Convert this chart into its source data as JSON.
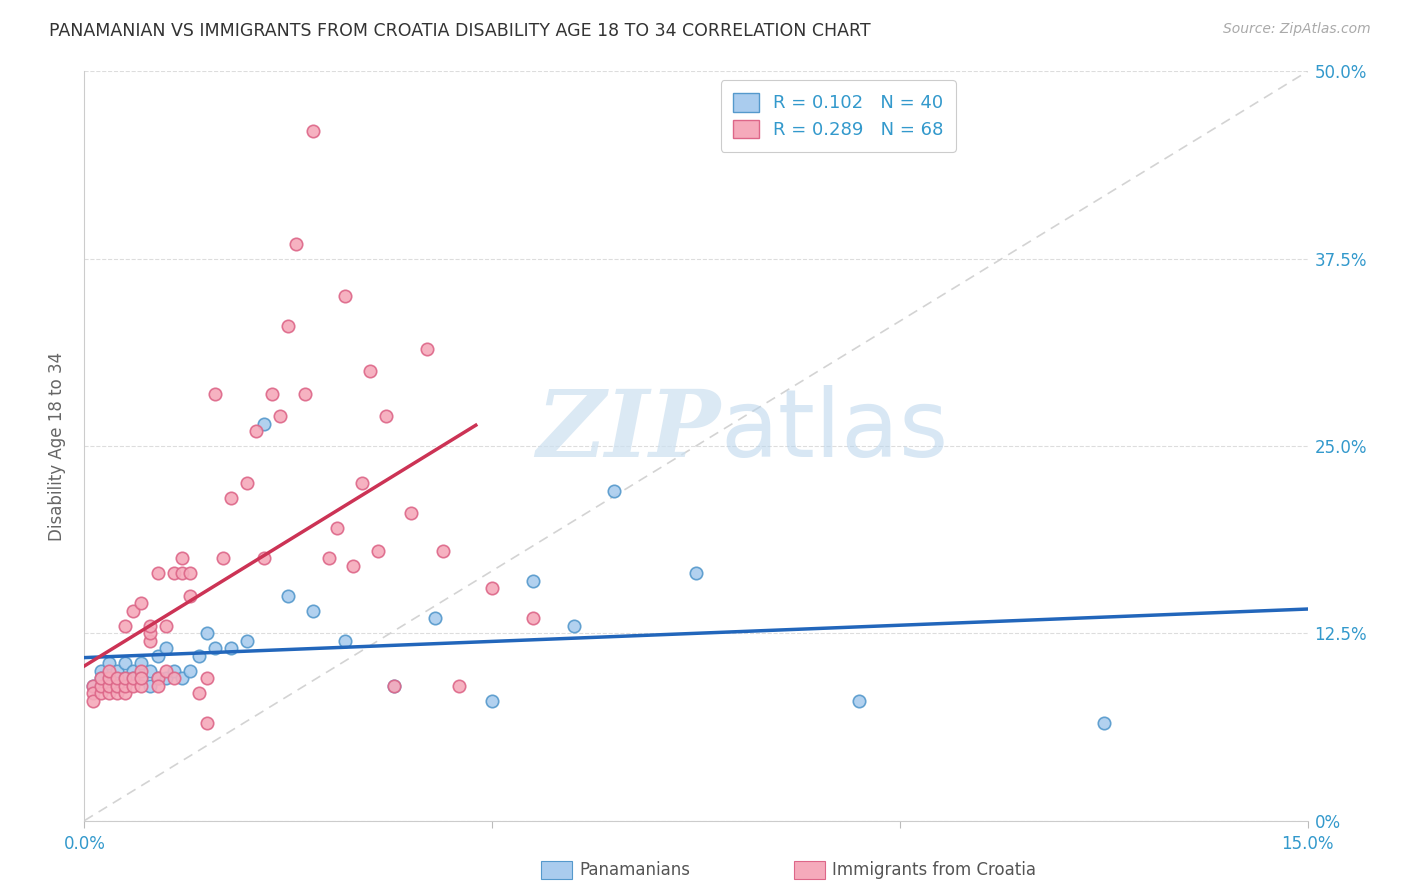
{
  "title": "PANAMANIAN VS IMMIGRANTS FROM CROATIA DISABILITY AGE 18 TO 34 CORRELATION CHART",
  "source": "Source: ZipAtlas.com",
  "ylabel": "Disability Age 18 to 34",
  "xlim": [
    0.0,
    0.15
  ],
  "ylim": [
    0.0,
    0.5
  ],
  "blue_R": 0.102,
  "blue_N": 40,
  "pink_R": 0.289,
  "pink_N": 68,
  "blue_color": "#aaccee",
  "pink_color": "#f5aabb",
  "blue_edge_color": "#5599cc",
  "pink_edge_color": "#dd6688",
  "blue_line_color": "#2266bb",
  "pink_line_color": "#cc3355",
  "diag_line_color": "#cccccc",
  "watermark_color": "#cce0f0",
  "legend_label_blue": "Panamanians",
  "legend_label_pink": "Immigrants from Croatia",
  "blue_scatter_x": [
    0.001,
    0.002,
    0.002,
    0.003,
    0.003,
    0.004,
    0.004,
    0.005,
    0.005,
    0.006,
    0.006,
    0.007,
    0.007,
    0.008,
    0.008,
    0.009,
    0.009,
    0.01,
    0.01,
    0.011,
    0.012,
    0.013,
    0.014,
    0.015,
    0.016,
    0.018,
    0.02,
    0.022,
    0.025,
    0.028,
    0.032,
    0.038,
    0.043,
    0.05,
    0.055,
    0.06,
    0.065,
    0.075,
    0.095,
    0.125
  ],
  "blue_scatter_y": [
    0.09,
    0.1,
    0.095,
    0.105,
    0.095,
    0.1,
    0.09,
    0.105,
    0.095,
    0.1,
    0.095,
    0.105,
    0.095,
    0.1,
    0.09,
    0.11,
    0.095,
    0.115,
    0.095,
    0.1,
    0.095,
    0.1,
    0.11,
    0.125,
    0.115,
    0.115,
    0.12,
    0.265,
    0.15,
    0.14,
    0.12,
    0.09,
    0.135,
    0.08,
    0.16,
    0.13,
    0.22,
    0.165,
    0.08,
    0.065
  ],
  "pink_scatter_x": [
    0.001,
    0.001,
    0.001,
    0.002,
    0.002,
    0.002,
    0.003,
    0.003,
    0.003,
    0.003,
    0.004,
    0.004,
    0.004,
    0.005,
    0.005,
    0.005,
    0.005,
    0.006,
    0.006,
    0.006,
    0.007,
    0.007,
    0.007,
    0.007,
    0.008,
    0.008,
    0.008,
    0.009,
    0.009,
    0.009,
    0.01,
    0.01,
    0.011,
    0.011,
    0.012,
    0.012,
    0.013,
    0.013,
    0.014,
    0.015,
    0.015,
    0.016,
    0.017,
    0.018,
    0.02,
    0.021,
    0.022,
    0.023,
    0.024,
    0.025,
    0.026,
    0.027,
    0.028,
    0.03,
    0.031,
    0.032,
    0.033,
    0.034,
    0.035,
    0.036,
    0.037,
    0.038,
    0.04,
    0.042,
    0.044,
    0.046,
    0.05,
    0.055
  ],
  "pink_scatter_y": [
    0.09,
    0.085,
    0.08,
    0.085,
    0.09,
    0.095,
    0.085,
    0.09,
    0.095,
    0.1,
    0.085,
    0.09,
    0.095,
    0.085,
    0.09,
    0.095,
    0.13,
    0.09,
    0.095,
    0.14,
    0.09,
    0.1,
    0.145,
    0.095,
    0.12,
    0.125,
    0.13,
    0.095,
    0.165,
    0.09,
    0.1,
    0.13,
    0.095,
    0.165,
    0.165,
    0.175,
    0.165,
    0.15,
    0.085,
    0.065,
    0.095,
    0.285,
    0.175,
    0.215,
    0.225,
    0.26,
    0.175,
    0.285,
    0.27,
    0.33,
    0.385,
    0.285,
    0.46,
    0.175,
    0.195,
    0.35,
    0.17,
    0.225,
    0.3,
    0.18,
    0.27,
    0.09,
    0.205,
    0.315,
    0.18,
    0.09,
    0.155,
    0.135
  ]
}
